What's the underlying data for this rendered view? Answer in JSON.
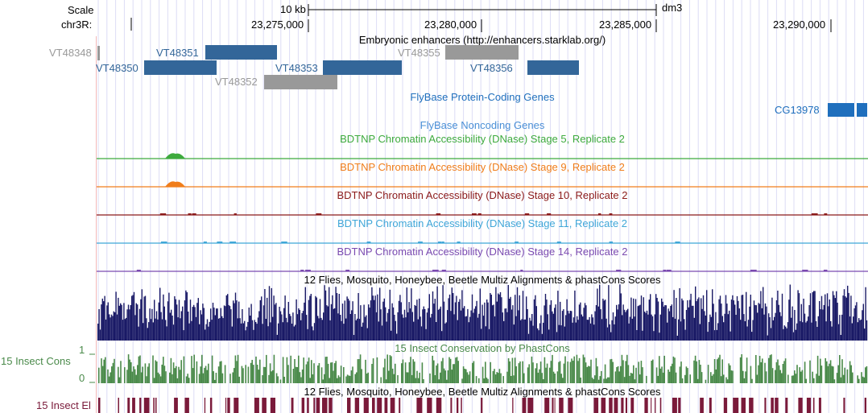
{
  "ruler": {
    "scale_label": "Scale",
    "scale_value": "10 kb",
    "assembly": "dm3",
    "chrom_label": "chr3R:",
    "positions": [
      "23,275,000",
      "23,280,000",
      "23,285,000",
      "23,290,000"
    ]
  },
  "enhancers": {
    "title": "Embryonic enhancers (http://enhancers.starklab.org/)",
    "features": [
      {
        "name": "VT48348",
        "color": "#999999"
      },
      {
        "name": "VT48350",
        "color": "#336699"
      },
      {
        "name": "VT48351",
        "color": "#336699"
      },
      {
        "name": "VT48352",
        "color": "#999999"
      },
      {
        "name": "VT48353",
        "color": "#336699"
      },
      {
        "name": "VT48355",
        "color": "#999999"
      },
      {
        "name": "VT48356",
        "color": "#336699"
      }
    ]
  },
  "coding_genes": {
    "title": "FlyBase Protein-Coding Genes",
    "gene": "CG13978",
    "color": "#1f6fbd"
  },
  "noncoding_genes": {
    "title": "FlyBase Noncoding Genes",
    "color": "#4a8fd6"
  },
  "dnase": [
    {
      "title": "BDTNP Chromatin Accessibility (DNase) Stage 5, Replicate 2",
      "color": "#3daa3d"
    },
    {
      "title": "BDTNP Chromatin Accessibility (DNase) Stage 9, Replicate 2",
      "color": "#f07d1a"
    },
    {
      "title": "BDTNP Chromatin Accessibility (DNase) Stage 10, Replicate 2",
      "color": "#8b1a1a"
    },
    {
      "title": "BDTNP Chromatin Accessibility (DNase) Stage 11, Replicate 2",
      "color": "#3fa6d8"
    },
    {
      "title": "BDTNP Chromatin Accessibility (DNase) Stage 14, Replicate 2",
      "color": "#7a4ab0"
    }
  ],
  "multiz": {
    "title": "12 Flies, Mosquito, Honeybee, Beetle Multiz Alignments & phastCons Scores",
    "color": "#1a1a66"
  },
  "conservation": {
    "left_label": "15 Insect Cons",
    "title": "15 Insect Conservation by PhastCons",
    "axis_max": "1",
    "axis_min": "0",
    "color": "#4a8a4a"
  },
  "elements": {
    "left_label": "15 Insect El",
    "title": "12 Flies, Mosquito, Honeybee, Beetle Multiz Alignments & phastCons Scores",
    "color": "#7a1a3a"
  }
}
